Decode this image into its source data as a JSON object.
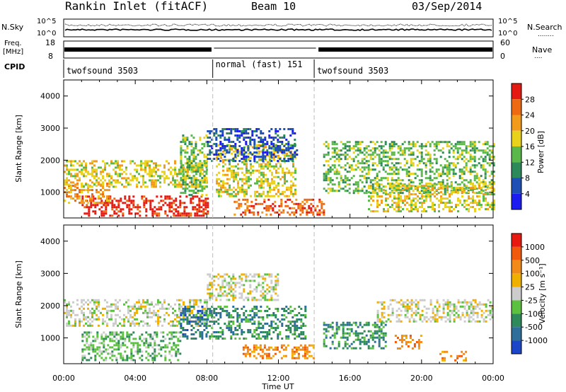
{
  "header": {
    "station": "Rankin Inlet (fitACF)",
    "beam": "Beam 10",
    "date": "03/Sep/2014"
  },
  "noise_panel": {
    "left_label": "N.Sky",
    "left_ticks": [
      "10^5",
      "10^0"
    ],
    "right_ticks": [
      "10^5",
      "10^0"
    ],
    "right_label": "N.Search",
    "right_label_dots": "........"
  },
  "freq_panel": {
    "left_label_top": "Freq.",
    "left_label_unit": "[MHz]",
    "left_ticks": [
      "18",
      "8"
    ],
    "right_ticks": [
      "60",
      "0"
    ],
    "right_label": "Nave",
    "right_label_dots": "...."
  },
  "cpid_panel": {
    "label": "CPID",
    "segments": [
      {
        "start": 0,
        "end": 8.33,
        "name": "twofsound 3503"
      },
      {
        "start": 8.33,
        "end": 14.0,
        "name": "normal (fast) 151"
      },
      {
        "start": 14.0,
        "end": 24,
        "name": "twofsound 3503"
      }
    ]
  },
  "chart_data": [
    {
      "type": "heatmap",
      "name": "power-panel",
      "ylabel": "Slant Range [km]",
      "x_range_hours": [
        0,
        24
      ],
      "ylim": [
        200,
        4500
      ],
      "y_ticks": [
        1000,
        2000,
        3000,
        4000
      ],
      "colorbar": {
        "label": "Power [dB]",
        "levels": [
          "4",
          "8",
          "12",
          "16",
          "20",
          "24",
          "28"
        ],
        "colors": [
          "#1c1cf0",
          "#1e4fb4",
          "#2c8a5a",
          "#5ab84a",
          "#e8d21c",
          "#f29a1c",
          "#ee6a12",
          "#e41a12"
        ]
      },
      "regions": [
        {
          "t0": 1.0,
          "t1": 8.0,
          "r0": 300,
          "r1": 900,
          "level": 7
        },
        {
          "t0": 0.0,
          "t1": 2.5,
          "r0": 700,
          "r1": 1300,
          "level": 5
        },
        {
          "t0": 0.0,
          "t1": 8.0,
          "r0": 1200,
          "r1": 2000,
          "level": 4
        },
        {
          "t0": 6.5,
          "t1": 8.0,
          "r0": 900,
          "r1": 2800,
          "level": 3
        },
        {
          "t0": 8.5,
          "t1": 13.0,
          "r0": 900,
          "r1": 2500,
          "level": 4
        },
        {
          "t0": 9.5,
          "t1": 14.5,
          "r0": 300,
          "r1": 800,
          "level": 6
        },
        {
          "t0": 8.0,
          "t1": 13.0,
          "r0": 2000,
          "r1": 3000,
          "level": 1
        },
        {
          "t0": 14.5,
          "t1": 24.0,
          "r0": 1000,
          "r1": 2600,
          "level": 3
        },
        {
          "t0": 17.0,
          "t1": 24.0,
          "r0": 400,
          "r1": 1300,
          "level": 4
        }
      ]
    },
    {
      "type": "heatmap",
      "name": "velocity-panel",
      "ylabel": "Slant Range [km]",
      "xlabel": "Time UT",
      "x_range_hours": [
        0,
        24
      ],
      "x_ticks": [
        "00:00",
        "04:00",
        "08:00",
        "12:00",
        "16:00",
        "20:00",
        "00:00"
      ],
      "ylim": [
        200,
        4500
      ],
      "y_ticks": [
        1000,
        2000,
        3000,
        4000
      ],
      "colorbar": {
        "label": "Velocity [m s⁻¹]",
        "levels": [
          "1000",
          "500",
          "100",
          "25",
          "-25",
          "-100",
          "-500",
          "-1000"
        ],
        "colors": [
          "#1c46c8",
          "#2e6e9a",
          "#2e8a5a",
          "#5cc040",
          "#cccccc",
          "#f0b000",
          "#f28a1a",
          "#f05a0a",
          "#e81a10"
        ]
      },
      "regions": [
        {
          "t0": 0.0,
          "t1": 8.0,
          "r0": 1400,
          "r1": 2200,
          "level": 4
        },
        {
          "t0": 1.0,
          "t1": 6.5,
          "r0": 300,
          "r1": 1200,
          "level": 3
        },
        {
          "t0": 6.5,
          "t1": 8.0,
          "r0": 1000,
          "r1": 2000,
          "level": 1
        },
        {
          "t0": 8.0,
          "t1": 13.5,
          "r0": 1000,
          "r1": 2000,
          "level": 2
        },
        {
          "t0": 8.0,
          "t1": 12.0,
          "r0": 2200,
          "r1": 3000,
          "level": 4
        },
        {
          "t0": 10.0,
          "t1": 14.0,
          "r0": 400,
          "r1": 800,
          "level": 6
        },
        {
          "t0": 14.5,
          "t1": 18.0,
          "r0": 700,
          "r1": 1500,
          "level": 2
        },
        {
          "t0": 17.5,
          "t1": 24.0,
          "r0": 1500,
          "r1": 2200,
          "level": 4
        },
        {
          "t0": 18.5,
          "t1": 20.0,
          "r0": 700,
          "r1": 1100,
          "level": 6
        },
        {
          "t0": 21.0,
          "t1": 22.5,
          "r0": 300,
          "r1": 600,
          "level": 6
        }
      ]
    }
  ]
}
